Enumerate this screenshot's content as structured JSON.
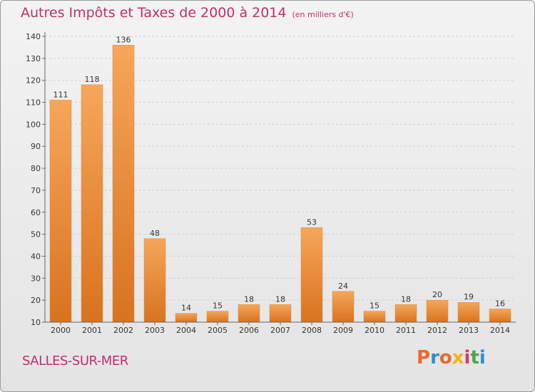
{
  "header": {
    "title": "Autres Impôts et Taxes de 2000 à 2014",
    "unit": "(en milliers d'€)"
  },
  "footer": {
    "town": "SALLES-SUR-MER",
    "logo_text": "Proxiti",
    "logo_colors": [
      "#e8692a",
      "#2f8fd0",
      "#e8692a",
      "#f0b21a",
      "#d83a6a",
      "#47a84b",
      "#2f8fd0"
    ]
  },
  "colors": {
    "bar_light": "#f6a65a",
    "bar_dark": "#d8731f",
    "title": "#c22e6b",
    "grid": "#cfcfcf"
  },
  "chart_data": {
    "type": "bar",
    "title": "Autres Impôts et Taxes de 2000 à 2014",
    "subtitle": "(en milliers d'€)",
    "xlabel": "",
    "ylabel": "",
    "categories": [
      "2000",
      "2001",
      "2002",
      "2003",
      "2004",
      "2005",
      "2006",
      "2007",
      "2008",
      "2009",
      "2010",
      "2011",
      "2012",
      "2013",
      "2014"
    ],
    "values": [
      111,
      118,
      136,
      48,
      14,
      15,
      18,
      18,
      53,
      24,
      15,
      18,
      20,
      19,
      16
    ],
    "ylim": [
      10,
      140
    ],
    "yticks": [
      10,
      20,
      30,
      40,
      50,
      60,
      70,
      80,
      90,
      100,
      110,
      120,
      130,
      140
    ],
    "grid": true,
    "legend": "none"
  }
}
